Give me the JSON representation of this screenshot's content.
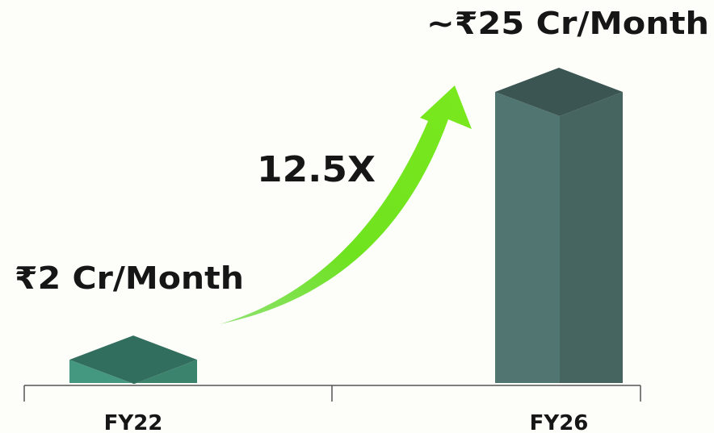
{
  "chart_data": {
    "type": "bar3d",
    "categories": [
      "FY22",
      "FY26"
    ],
    "values": [
      2,
      25
    ],
    "value_labels": [
      "₹2 Cr/Month",
      "~₹25 Cr/Month"
    ],
    "colors": [
      "#3f8a74",
      "#4a6a66"
    ],
    "annotation": "12.5X"
  }
}
